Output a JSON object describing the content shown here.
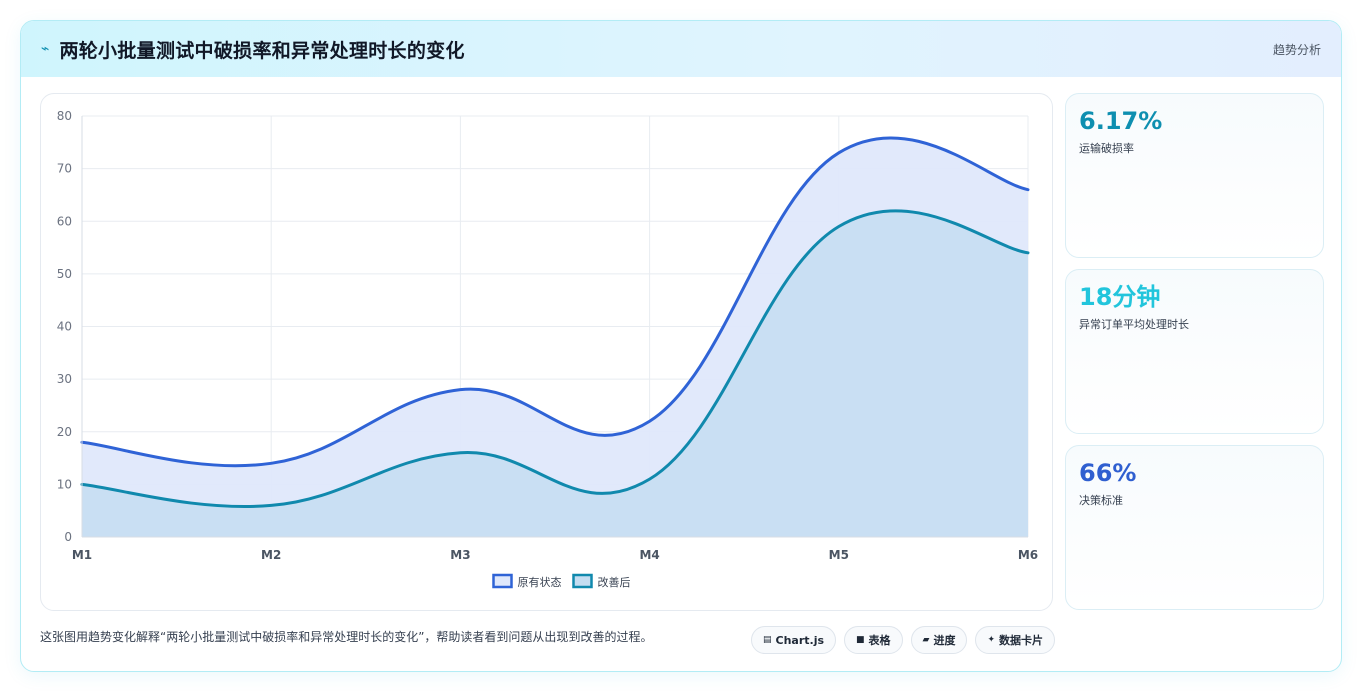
{
  "header": {
    "icon": "lightning-icon",
    "title": "两轮小批量测试中破损率和异常处理时长的变化",
    "tag": "趋势分析"
  },
  "stats": [
    {
      "value": "6.17%",
      "label": "运输破损率",
      "color": "#0e8fb0"
    },
    {
      "value": "18分钟",
      "label": "异常订单平均处理时长",
      "color": "#22c5dc"
    },
    {
      "value": "66%",
      "label": "决策标准",
      "color": "#2f5fd0"
    }
  ],
  "footer": {
    "text": "这张图用趋势变化解释“两轮小批量测试中破损率和异常处理时长的变化”，帮助读者看到问题从出现到改善的过程。",
    "pills": [
      {
        "icon": "chart-icon",
        "glyph": "▤",
        "label": "Chart.js"
      },
      {
        "icon": "table-icon",
        "glyph": "■",
        "label": "表格"
      },
      {
        "icon": "progress-icon",
        "glyph": "▰",
        "label": "进度"
      },
      {
        "icon": "card-icon",
        "glyph": "✦",
        "label": "数据卡片"
      }
    ]
  },
  "chart_data": {
    "type": "area",
    "categories": [
      "M1",
      "M2",
      "M3",
      "M4",
      "M5",
      "M6"
    ],
    "series": [
      {
        "name": "原有状态",
        "values": [
          18,
          14,
          28,
          22,
          73,
          66
        ],
        "color": "#2f63d6",
        "fill": "#dfe8fb"
      },
      {
        "name": "改善后",
        "values": [
          10,
          6,
          16,
          11,
          59,
          54
        ],
        "color": "#1089ad",
        "fill": "#c4ddf1"
      }
    ],
    "ylim": [
      0,
      80
    ],
    "yticks": [
      0,
      10,
      20,
      30,
      40,
      50,
      60,
      70,
      80
    ],
    "grid": true,
    "legend": "bottom-center",
    "xlabel": "",
    "ylabel": ""
  }
}
